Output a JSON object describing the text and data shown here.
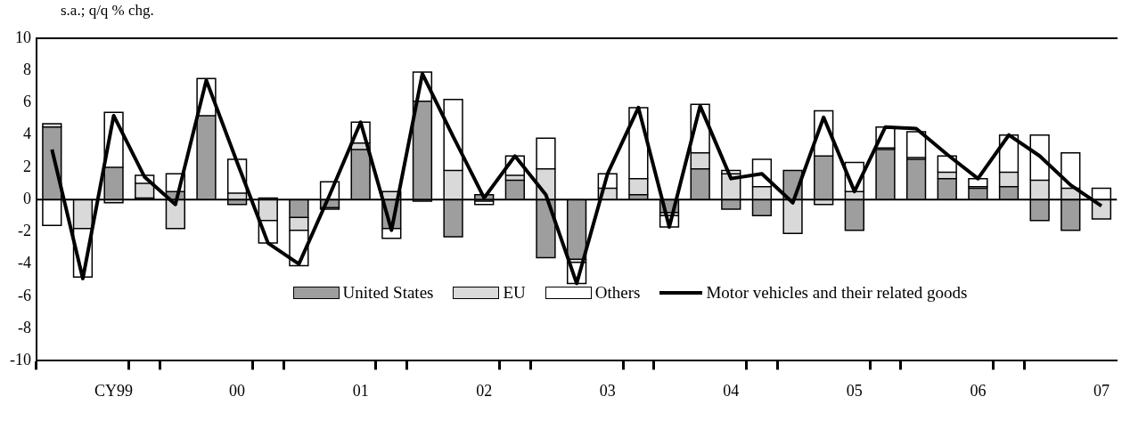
{
  "chart_data": {
    "type": "bar",
    "stacked": true,
    "ylabel": "s.a.; q/q % chg.",
    "legend": "bottom",
    "grid": false,
    "categories": [
      null,
      null,
      "CY99",
      null,
      null,
      null,
      "00",
      null,
      null,
      null,
      "01",
      null,
      null,
      null,
      "02",
      null,
      null,
      null,
      "03",
      null,
      null,
      null,
      "04",
      null,
      null,
      null,
      "05",
      null,
      null,
      null,
      "06",
      null,
      null,
      null,
      "07"
    ],
    "ref_lines": [
      {
        "axis": "y",
        "value": 0,
        "color": "#000000"
      }
    ],
    "ylim": [
      -10,
      10
    ],
    "yticks": [
      -10,
      -8,
      -6,
      -4,
      -2,
      0,
      2,
      4,
      6,
      8,
      10
    ],
    "series": [
      {
        "name": "United States",
        "color": "#9e9e9e",
        "values": [
          4.5,
          0,
          2.0,
          0.1,
          0.5,
          5.2,
          -0.3,
          0.1,
          -1.1,
          -0.5,
          3.1,
          -1.8,
          6.1,
          -2.3,
          0.3,
          1.2,
          -3.6,
          -3.7,
          0,
          0.3,
          -0.8,
          1.9,
          -0.6,
          -1.0,
          1.8,
          2.7,
          -1.9,
          3.1,
          2.5,
          1.3,
          0.7,
          0.8,
          -1.3,
          -1.9,
          0
        ]
      },
      {
        "name": "EU",
        "color": "#d9d9d9",
        "values": [
          0.2,
          -1.8,
          -0.2,
          0.9,
          -1.8,
          0,
          0.4,
          -1.3,
          -0.8,
          -0.1,
          0.4,
          0.5,
          -0.1,
          1.8,
          -0.1,
          0.3,
          1.9,
          -0.2,
          0.7,
          1.0,
          -0.2,
          1.0,
          1.6,
          0.8,
          -2.1,
          -0.3,
          0.5,
          0.1,
          0.1,
          0.4,
          0.1,
          0.9,
          1.2,
          0.7,
          -1.2
        ]
      },
      {
        "name": "Others",
        "color": "#ffffff",
        "values": [
          -1.6,
          -3.0,
          3.4,
          0.5,
          1.1,
          2.3,
          2.1,
          -1.4,
          -2.2,
          1.1,
          1.3,
          -0.6,
          1.8,
          4.4,
          -0.2,
          1.2,
          1.9,
          -1.3,
          0.9,
          4.4,
          -0.7,
          3.0,
          0.2,
          1.7,
          0,
          2.8,
          1.8,
          1.3,
          1.6,
          1.0,
          0.5,
          2.3,
          2.8,
          2.2,
          0.7
        ]
      },
      {
        "name": "Motor vehicles and their related goods",
        "type": "line",
        "color": "#000000",
        "values": [
          3.1,
          -4.9,
          5.2,
          1.4,
          -0.3,
          7.4,
          2.3,
          -2.7,
          -4.0,
          0.3,
          4.8,
          -1.9,
          7.8,
          3.9,
          0.1,
          2.7,
          0.3,
          -5.2,
          1.6,
          5.7,
          -1.7,
          5.8,
          1.3,
          1.6,
          -0.2,
          5.1,
          0.5,
          4.5,
          4.4,
          2.8,
          1.3,
          4.0,
          2.7,
          0.9,
          -0.4
        ]
      }
    ]
  }
}
